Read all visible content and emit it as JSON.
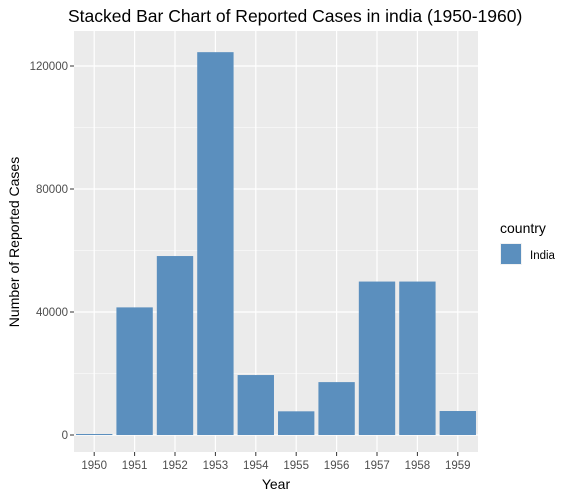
{
  "chart_data": {
    "type": "bar",
    "title": "Stacked Bar Chart of Reported Cases in india (1950-1960)",
    "xlabel": "Year",
    "ylabel": "Number of Reported Cases",
    "categories": [
      "1950",
      "1951",
      "1952",
      "1953",
      "1954",
      "1955",
      "1956",
      "1957",
      "1958",
      "1959"
    ],
    "series": [
      {
        "name": "India",
        "values": [
          300,
          41500,
          58200,
          124500,
          19500,
          7700,
          17200,
          49900,
          49900,
          7800
        ]
      }
    ],
    "ylim": [
      0,
      131000
    ],
    "yticks": [
      0,
      40000,
      80000,
      120000
    ],
    "ytick_labels": [
      "0",
      "40000",
      "80000",
      "120000"
    ],
    "legend": {
      "title": "country",
      "position": "right"
    },
    "grid": true,
    "colors": {
      "bar": "#5b8fbe",
      "panel": "#ebebeb",
      "grid": "#ffffff"
    }
  }
}
